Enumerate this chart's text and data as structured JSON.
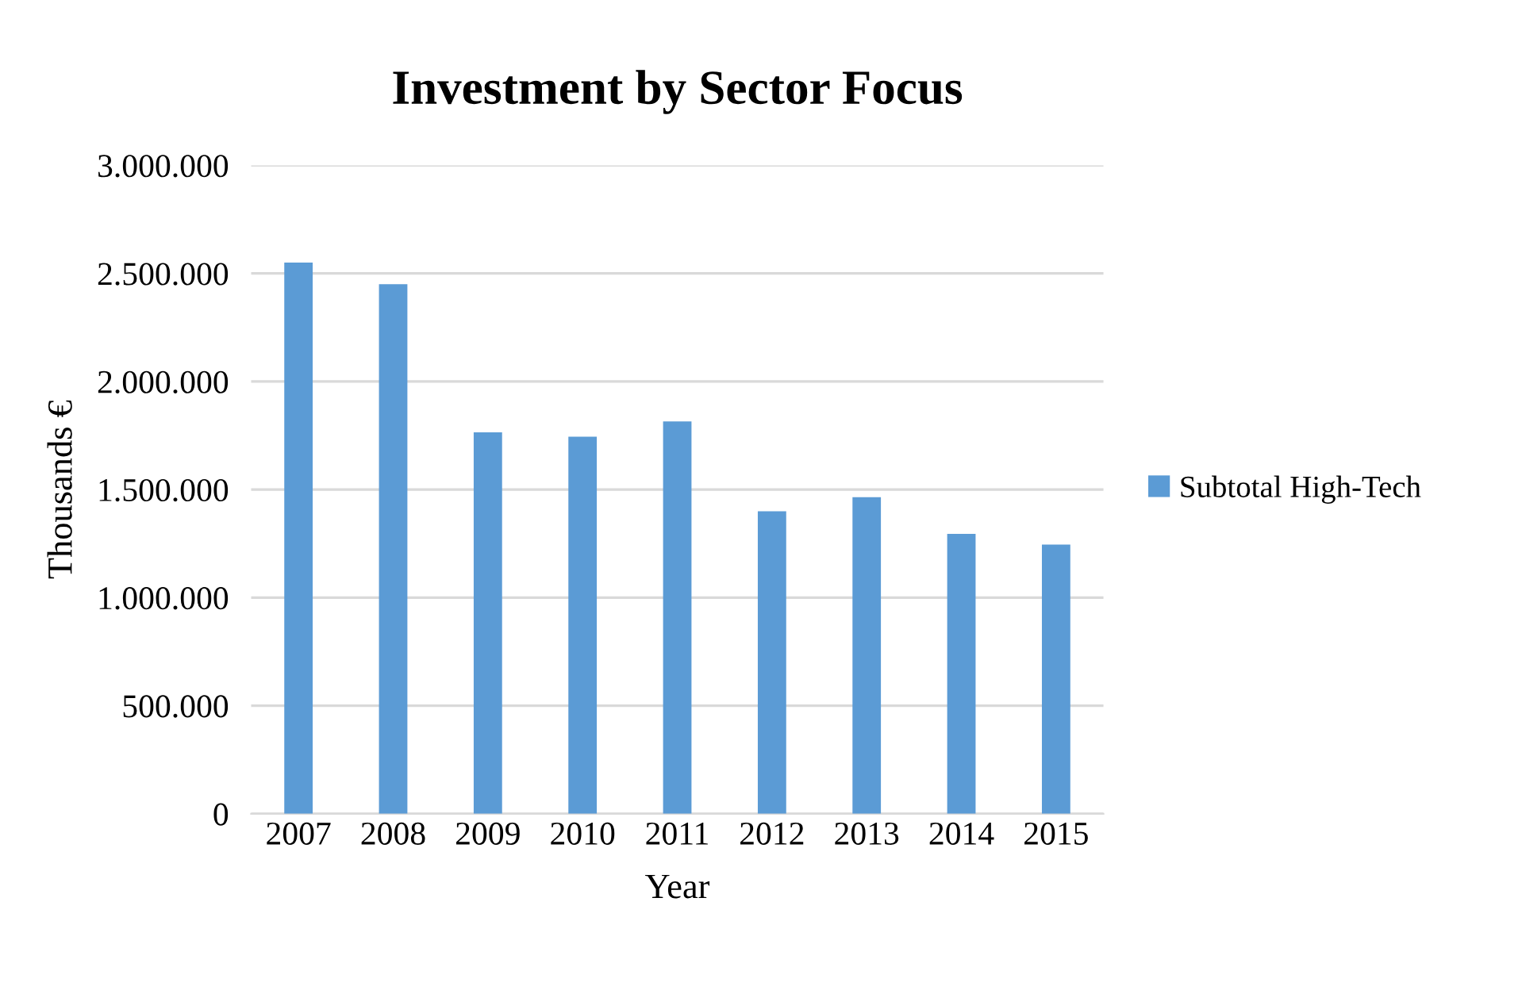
{
  "chart_data": {
    "type": "bar",
    "title": "Investment by Sector Focus",
    "xlabel": "Year",
    "ylabel": "Thousands €",
    "categories": [
      "2007",
      "2008",
      "2009",
      "2010",
      "2011",
      "2012",
      "2013",
      "2014",
      "2015"
    ],
    "series": [
      {
        "name": "Subtotal High-Tech",
        "color": "#5b9bd5",
        "values": [
          2550000,
          2450000,
          1765000,
          1745000,
          1815000,
          1400000,
          1465000,
          1295000,
          1245000
        ]
      }
    ],
    "ylim": [
      0,
      3000000
    ],
    "yticks": [
      {
        "value": 0,
        "label": "0"
      },
      {
        "value": 500000,
        "label": "500.000"
      },
      {
        "value": 1000000,
        "label": "1.000.000"
      },
      {
        "value": 1500000,
        "label": "1.500.000"
      },
      {
        "value": 2000000,
        "label": "2.000.000"
      },
      {
        "value": 2500000,
        "label": "2.500.000"
      },
      {
        "value": 3000000,
        "label": "3.000.000"
      }
    ],
    "grid": "y",
    "legend": "right"
  }
}
